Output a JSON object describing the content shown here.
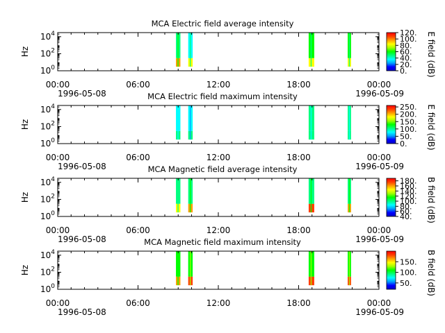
{
  "figure": {
    "x_start": "1996-05-08 00:00",
    "x_end": "1996-05-09 00:00",
    "x_tick_labels": [
      "00:00",
      "06:00",
      "12:00",
      "18:00",
      "00:00"
    ],
    "x_date_labels": [
      "1996-05-08",
      "1996-05-09"
    ],
    "y_label": "Hz",
    "y_tick_labels": [
      "10^0",
      "10^2",
      "10^4"
    ],
    "colormap": [
      "#0000c8",
      "#0000ff",
      "#00a0ff",
      "#00ffff",
      "#00ff80",
      "#00ff00",
      "#a0ff00",
      "#ffff00",
      "#ffa000",
      "#ff4000",
      "#ff0000"
    ]
  },
  "chart_data": [
    {
      "type": "heatmap",
      "title": "MCA  Electric field average intensity",
      "ylabel": "Hz",
      "y_scale": "log",
      "ylim": [
        1,
        30000
      ],
      "colorbar_label": "E field (dB)",
      "colorbar_range": [
        0,
        120
      ],
      "colorbar_ticks": [
        "0.",
        "20.",
        "40.",
        "60.",
        "80.",
        "100.",
        "120."
      ],
      "intervals": [
        {
          "start": "08:50",
          "end": "09:10",
          "level": 45,
          "low_freq_level": 95
        },
        {
          "start": "09:45",
          "end": "10:05",
          "level": 40,
          "low_freq_level": 85
        },
        {
          "start": "18:45",
          "end": "19:10",
          "level": 55,
          "low_freq_level": 80
        },
        {
          "start": "21:40",
          "end": "21:55",
          "level": 55,
          "low_freq_level": 80
        }
      ]
    },
    {
      "type": "heatmap",
      "title": "MCA  Electric field maximum intensity",
      "ylabel": "Hz",
      "y_scale": "log",
      "ylim": [
        1,
        30000
      ],
      "colorbar_label": "E field (dB)",
      "colorbar_range": [
        0,
        260
      ],
      "colorbar_ticks": [
        "0.",
        "50.",
        "100.",
        "150.",
        "200.",
        "250."
      ],
      "intervals": [
        {
          "start": "08:50",
          "end": "09:10",
          "level": 90,
          "low_freq_level": 110
        },
        {
          "start": "09:45",
          "end": "10:05",
          "level": 80,
          "low_freq_level": 100
        },
        {
          "start": "18:45",
          "end": "19:10",
          "level": 95,
          "low_freq_level": 105
        },
        {
          "start": "21:40",
          "end": "21:55",
          "level": 95,
          "low_freq_level": 105
        }
      ]
    },
    {
      "type": "heatmap",
      "title": "MCA  Magnetic field average intensity",
      "ylabel": "Hz",
      "y_scale": "log",
      "ylim": [
        1,
        30000
      ],
      "colorbar_label": "B field (dB)",
      "colorbar_range": [
        40,
        190
      ],
      "colorbar_ticks": [
        "40.",
        "60.",
        "80.",
        "100.",
        "120.",
        "140.",
        "160.",
        "180."
      ],
      "intervals": [
        {
          "start": "08:50",
          "end": "09:10",
          "level": 100,
          "low_freq_level": 150
        },
        {
          "start": "09:45",
          "end": "10:05",
          "level": 100,
          "low_freq_level": 160
        },
        {
          "start": "18:45",
          "end": "19:10",
          "level": 105,
          "low_freq_level": 170
        },
        {
          "start": "21:40",
          "end": "21:55",
          "level": 105,
          "low_freq_level": 165
        }
      ]
    },
    {
      "type": "heatmap",
      "title": "MCA  Magnetic field maximum intensity",
      "ylabel": "Hz",
      "y_scale": "log",
      "ylim": [
        1,
        30000
      ],
      "colorbar_label": "B field (dB)",
      "colorbar_range": [
        20,
        200
      ],
      "colorbar_ticks": [
        "50.",
        "100.",
        "150."
      ],
      "intervals": [
        {
          "start": "08:50",
          "end": "09:10",
          "level": 110,
          "low_freq_level": 170
        },
        {
          "start": "09:45",
          "end": "10:05",
          "level": 110,
          "low_freq_level": 180
        },
        {
          "start": "18:45",
          "end": "19:10",
          "level": 115,
          "low_freq_level": 185
        },
        {
          "start": "21:40",
          "end": "21:55",
          "level": 115,
          "low_freq_level": 180
        }
      ]
    }
  ]
}
